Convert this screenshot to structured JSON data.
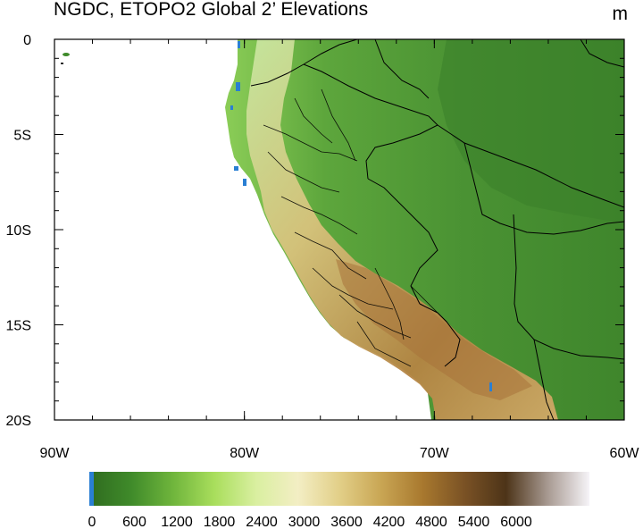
{
  "title": "NGDC, ETOPO2 Global 2’ Elevations",
  "units": "m",
  "map": {
    "lon_range": [
      -90,
      -60
    ],
    "lat_range": [
      -20,
      0
    ],
    "x_ticks": [
      {
        "lon": -90,
        "label": "90W"
      },
      {
        "lon": -80,
        "label": "80W"
      },
      {
        "lon": -70,
        "label": "70W"
      },
      {
        "lon": -60,
        "label": "60W"
      }
    ],
    "y_ticks": [
      {
        "lat": 0,
        "label": "0"
      },
      {
        "lat": -5,
        "label": "5S"
      },
      {
        "lat": -10,
        "label": "10S"
      },
      {
        "lat": -15,
        "label": "15S"
      },
      {
        "lat": -20,
        "label": "20S"
      }
    ]
  },
  "colorbar": {
    "labels": [
      "0",
      "600",
      "1200",
      "1800",
      "2400",
      "3000",
      "3600",
      "4200",
      "4800",
      "5400",
      "6000"
    ],
    "colors": [
      "#2f6b1f",
      "#3f8a2a",
      "#6fb53c",
      "#a9de5c",
      "#d9efa0",
      "#f3eec4",
      "#e2cf88",
      "#c9a654",
      "#a8782e",
      "#7a5225",
      "#4d3418",
      "#a89a92",
      "#f6f4f8"
    ],
    "sea_color": "#2a7fd3"
  },
  "colors": {
    "ocean": "#ffffff",
    "lowland": "#4f9a3a",
    "andes": "#c79a55",
    "coast": "#8bcd57"
  }
}
